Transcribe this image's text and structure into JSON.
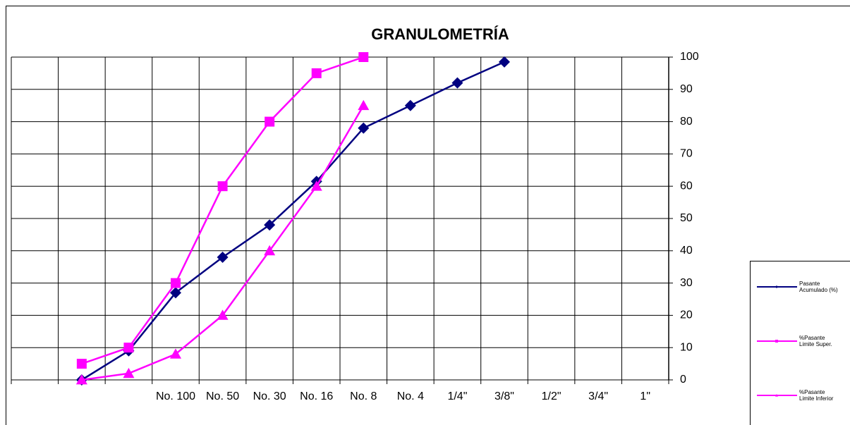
{
  "chart_data": {
    "type": "line",
    "title": "GRANULOMETRÍA",
    "categories": [
      null,
      null,
      null,
      "No. 100",
      "No. 50",
      "No. 30",
      "No. 16",
      "No. 8",
      "No. 4",
      "1/4\"",
      "3/8\"",
      "1/2\"",
      "3/4\"",
      "1\""
    ],
    "series": [
      {
        "name": "Pasante Acumulado (%)",
        "color": "#000080",
        "marker": "diamond",
        "values": [
          null,
          0,
          9,
          27,
          38,
          48,
          61.5,
          78,
          85,
          92,
          98.5,
          null,
          null,
          null
        ]
      },
      {
        "name": "%Pasante Limite Super.",
        "color": "#ff00ff",
        "marker": "square",
        "values": [
          null,
          5,
          10,
          30,
          60,
          80,
          95,
          100,
          null,
          null,
          null,
          null,
          null,
          null
        ]
      },
      {
        "name": "%Pasante Limite Inferior",
        "color": "#ff00ff",
        "marker": "triangle",
        "values": [
          null,
          0,
          2,
          8,
          20,
          40,
          60,
          85,
          null,
          null,
          null,
          null,
          null,
          null
        ]
      }
    ],
    "ylim": [
      0,
      100
    ],
    "yticks": [
      0,
      10,
      20,
      30,
      40,
      50,
      60,
      70,
      80,
      90,
      100
    ],
    "y_axis_side": "right",
    "grid": true
  }
}
